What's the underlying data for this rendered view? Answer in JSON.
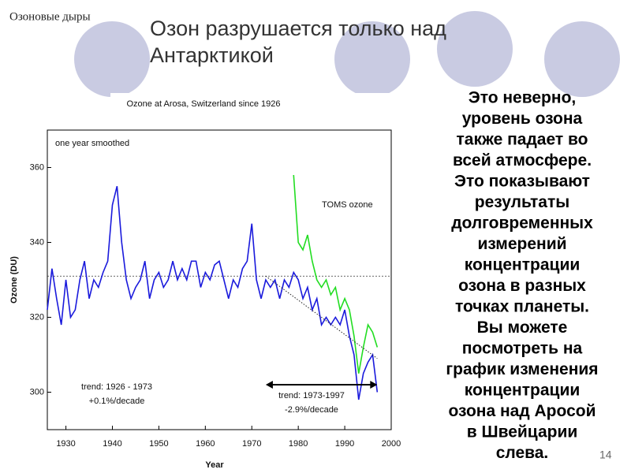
{
  "slide": {
    "section": "Озоновые дыры",
    "title_lines": [
      "Озон разрушается только над",
      "Антарктикой"
    ],
    "body_lines": [
      "Это неверно,",
      "уровень озона",
      "также падает во",
      "всей атмосфере.",
      "Это показывают",
      "результаты",
      "долговременных",
      "измерений",
      "концентрации",
      "озона в разных",
      "точках планеты.",
      "Вы можете",
      "посмотреть на",
      "график изменения",
      "концентрации",
      "озона над Аросой",
      "в Швейцарии",
      "слева."
    ],
    "page_number": "14"
  },
  "chart_data": {
    "type": "line",
    "title": "Ozone at Arosa, Switzerland since 1926",
    "x_label": "Year",
    "y_label": "Ozone (DU)",
    "annotations": [
      "one year smoothed",
      "TOMS ozone",
      "trend: 1926 - 1973",
      "+0.1%/decade",
      "trend: 1973-1997",
      "-2.9%/decade"
    ],
    "xlim": [
      1926,
      2000
    ],
    "xticks": [
      1930,
      1940,
      1950,
      1960,
      1970,
      1980,
      1990,
      2000
    ],
    "ylim": [
      290,
      370
    ],
    "yticks": [
      300,
      320,
      340,
      360
    ],
    "mean_line": 331,
    "trend_line": {
      "x": [
        1973,
        1997
      ],
      "values": [
        331,
        309
      ]
    },
    "arrow": {
      "x": [
        1973,
        1997
      ],
      "y": 302
    },
    "series": [
      {
        "name": "Arosa",
        "color": "#1a1adc",
        "x": [
          1926,
          1927,
          1928,
          1929,
          1930,
          1931,
          1932,
          1933,
          1934,
          1935,
          1936,
          1937,
          1938,
          1939,
          1940,
          1941,
          1942,
          1943,
          1944,
          1945,
          1946,
          1947,
          1948,
          1949,
          1950,
          1951,
          1952,
          1953,
          1954,
          1955,
          1956,
          1957,
          1958,
          1959,
          1960,
          1961,
          1962,
          1963,
          1964,
          1965,
          1966,
          1967,
          1968,
          1969,
          1970,
          1971,
          1972,
          1973,
          1974,
          1975,
          1976,
          1977,
          1978,
          1979,
          1980,
          1981,
          1982,
          1983,
          1984,
          1985,
          1986,
          1987,
          1988,
          1989,
          1990,
          1991,
          1992,
          1993,
          1994,
          1995,
          1996,
          1997
        ],
        "values": [
          322,
          333,
          325,
          318,
          330,
          320,
          322,
          330,
          335,
          325,
          330,
          328,
          332,
          335,
          350,
          355,
          340,
          330,
          325,
          328,
          330,
          335,
          325,
          330,
          332,
          328,
          330,
          335,
          330,
          333,
          330,
          335,
          335,
          328,
          332,
          330,
          334,
          335,
          330,
          325,
          330,
          328,
          333,
          335,
          345,
          330,
          325,
          330,
          328,
          330,
          325,
          330,
          328,
          332,
          330,
          325,
          328,
          322,
          325,
          318,
          320,
          318,
          320,
          318,
          322,
          315,
          310,
          298,
          305,
          308,
          310,
          300
        ]
      },
      {
        "name": "TOMS ozone",
        "color": "#22dd22",
        "x": [
          1979,
          1980,
          1981,
          1982,
          1983,
          1984,
          1985,
          1986,
          1987,
          1988,
          1989,
          1990,
          1991,
          1992,
          1993,
          1994,
          1995,
          1996,
          1997
        ],
        "values": [
          358,
          340,
          338,
          342,
          335,
          330,
          328,
          330,
          326,
          328,
          322,
          325,
          322,
          315,
          305,
          312,
          318,
          316,
          312
        ]
      }
    ]
  }
}
